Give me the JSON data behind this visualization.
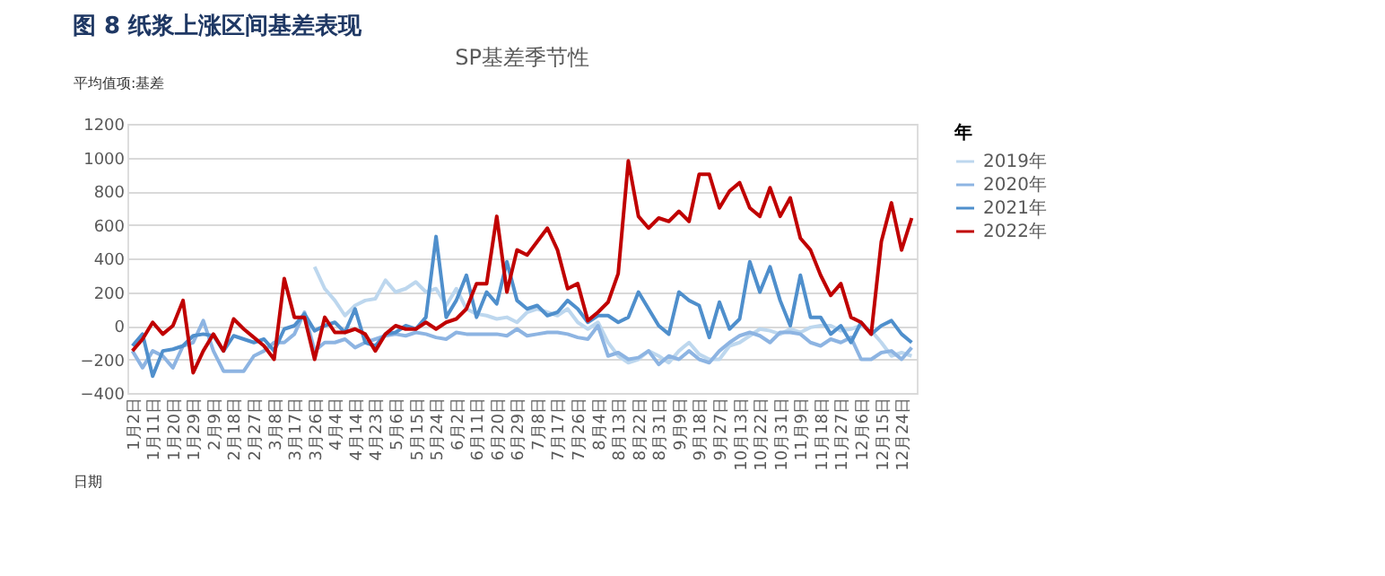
{
  "chart_data": {
    "type": "line",
    "title": "图 8  纸浆上涨区间基差表现",
    "subtitle": "SP基差季节性",
    "legend_title": "年",
    "legend": "right",
    "grid": "y",
    "marker": "none",
    "line_style": "solid",
    "annotations": [
      "平均值项:基差",
      "日期"
    ],
    "ylim": [
      -400,
      1200
    ],
    "yticks": [
      -400,
      -200,
      0,
      200,
      400,
      600,
      800,
      1000,
      1200
    ],
    "categories": [
      "1月2日",
      null,
      "1月11日",
      null,
      "1月20日",
      null,
      "1月29日",
      null,
      "2月9日",
      null,
      "2月18日",
      null,
      "2月27日",
      null,
      "3月8日",
      null,
      "3月17日",
      null,
      "3月26日",
      null,
      "4月4日",
      null,
      "4月14日",
      null,
      "4月23日",
      null,
      "5月6日",
      null,
      "5月15日",
      null,
      "5月24日",
      null,
      "6月2日",
      null,
      "6月11日",
      null,
      "6月20日",
      null,
      "6月29日",
      null,
      "7月8日",
      null,
      "7月17日",
      null,
      "7月26日",
      null,
      "8月4日",
      null,
      "8月13日",
      null,
      "8月22日",
      null,
      "8月31日",
      null,
      "9月9日",
      null,
      "9月18日",
      null,
      "9月27日",
      null,
      "10月13日",
      null,
      "10月22日",
      null,
      "10月31日",
      null,
      "11月9日",
      null,
      "11月18日",
      null,
      "11月27日",
      null,
      "12月6日",
      null,
      "12月15日",
      null,
      "12月24日",
      null
    ],
    "series": [
      {
        "name": "2019年",
        "color": "#bdd7ee",
        "values": [
          null,
          null,
          null,
          null,
          null,
          null,
          null,
          null,
          null,
          null,
          null,
          null,
          null,
          null,
          null,
          null,
          null,
          null,
          350,
          220,
          150,
          60,
          120,
          150,
          160,
          270,
          200,
          220,
          260,
          200,
          220,
          120,
          220,
          100,
          70,
          60,
          40,
          50,
          20,
          80,
          100,
          80,
          60,
          100,
          20,
          -20,
          20,
          -100,
          -180,
          -220,
          -200,
          -150,
          -180,
          -220,
          -150,
          -100,
          -170,
          -200,
          -200,
          -120,
          -100,
          -60,
          -20,
          -30,
          -50,
          -20,
          -40,
          -10,
          0,
          0,
          -30,
          -20,
          0,
          -30,
          -100,
          -180,
          -160,
          -180
        ]
      },
      {
        "name": "2020年",
        "color": "#8db4e2",
        "values": [
          -150,
          -250,
          -150,
          -180,
          -250,
          -120,
          -100,
          30,
          -150,
          -270,
          -270,
          -270,
          -180,
          -150,
          -100,
          -100,
          -50,
          80,
          -150,
          -100,
          -100,
          -80,
          -130,
          -100,
          -80,
          -60,
          -50,
          -60,
          -40,
          -50,
          -70,
          -80,
          -40,
          -50,
          -50,
          -50,
          -50,
          -60,
          -20,
          -60,
          -50,
          -40,
          -40,
          -50,
          -70,
          -80,
          0,
          -180,
          -160,
          -200,
          -190,
          -150,
          -230,
          -180,
          -200,
          -150,
          -200,
          -220,
          -150,
          -100,
          -60,
          -40,
          -60,
          -100,
          -40,
          -40,
          -50,
          -100,
          -120,
          -80,
          -100,
          -70,
          -200,
          -200,
          -160,
          -150,
          -200,
          -130
        ]
      },
      {
        "name": "2021年",
        "color": "#4f8fcc",
        "values": [
          -120,
          -50,
          -300,
          -150,
          -140,
          -120,
          -60,
          -50,
          -60,
          -150,
          -60,
          -80,
          -100,
          -80,
          -150,
          -20,
          0,
          70,
          -30,
          0,
          20,
          -40,
          100,
          -100,
          -120,
          -50,
          -40,
          0,
          -20,
          50,
          530,
          50,
          150,
          300,
          50,
          200,
          130,
          380,
          150,
          100,
          120,
          60,
          80,
          150,
          100,
          20,
          60,
          60,
          20,
          50,
          200,
          100,
          0,
          -50,
          200,
          150,
          120,
          -70,
          140,
          -20,
          40,
          380,
          200,
          350,
          150,
          0,
          300,
          50,
          50,
          -50,
          0,
          -100,
          20,
          -50,
          0,
          30,
          -50,
          -100
        ]
      },
      {
        "name": "2022年",
        "color": "#c00000",
        "values": [
          -150,
          -80,
          20,
          -50,
          0,
          150,
          -280,
          -150,
          -50,
          -150,
          40,
          -20,
          -70,
          -120,
          -200,
          280,
          50,
          50,
          -200,
          50,
          -40,
          -40,
          -20,
          -50,
          -150,
          -50,
          0,
          -20,
          -20,
          20,
          -20,
          20,
          40,
          100,
          250,
          250,
          650,
          200,
          450,
          420,
          500,
          580,
          450,
          220,
          250,
          30,
          80,
          140,
          310,
          980,
          650,
          580,
          640,
          620,
          680,
          620,
          900,
          900,
          700,
          800,
          850,
          700,
          650,
          820,
          650,
          760,
          520,
          450,
          300,
          180,
          250,
          50,
          20,
          -50,
          500,
          730,
          450,
          640
        ]
      }
    ]
  }
}
